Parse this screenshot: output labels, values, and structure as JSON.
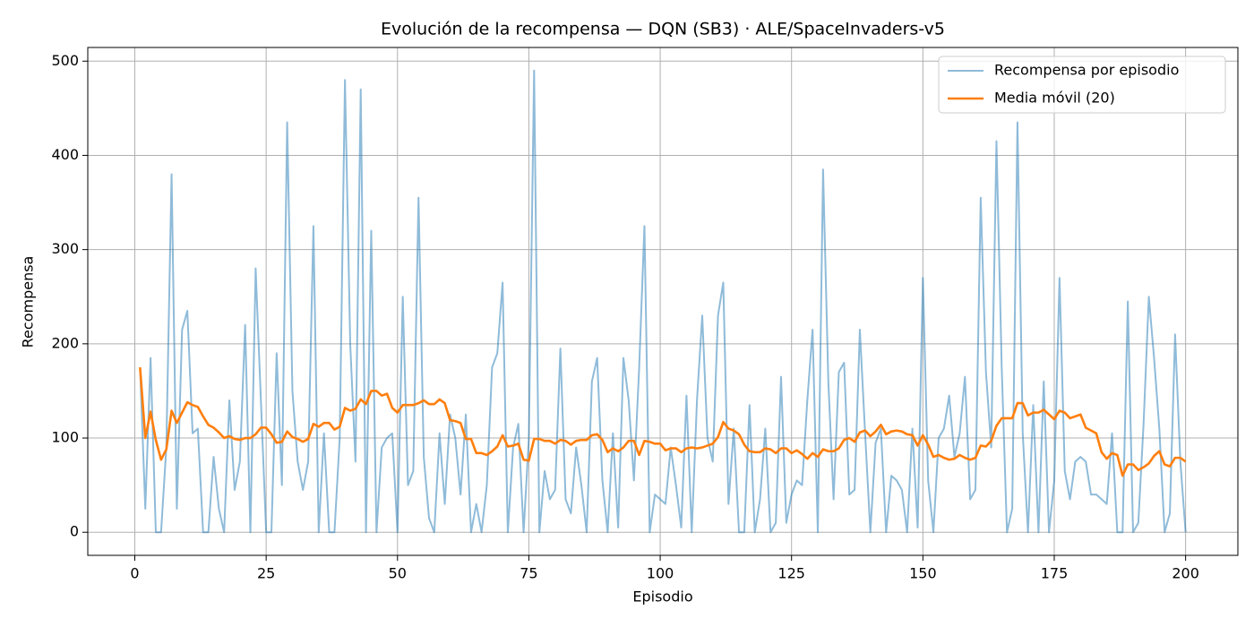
{
  "chart_data": {
    "type": "line",
    "title": "Evolución de la recompensa — DQN (SB3) · ALE/SpaceInvaders-v5",
    "x_label": "Episodio",
    "y_label": "Recompensa",
    "x": [
      1,
      2,
      3,
      4,
      5,
      6,
      7,
      8,
      9,
      10,
      11,
      12,
      13,
      14,
      15,
      16,
      17,
      18,
      19,
      20,
      21,
      22,
      23,
      24,
      25,
      26,
      27,
      28,
      29,
      30,
      31,
      32,
      33,
      34,
      35,
      36,
      37,
      38,
      39,
      40,
      41,
      42,
      43,
      44,
      45,
      46,
      47,
      48,
      49,
      50,
      51,
      52,
      53,
      54,
      55,
      56,
      57,
      58,
      59,
      60,
      61,
      62,
      63,
      64,
      65,
      66,
      67,
      68,
      69,
      70,
      71,
      72,
      73,
      74,
      75,
      76,
      77,
      78,
      79,
      80,
      81,
      82,
      83,
      84,
      85,
      86,
      87,
      88,
      89,
      90,
      91,
      92,
      93,
      94,
      95,
      96,
      97,
      98,
      99,
      100,
      101,
      102,
      103,
      104,
      105,
      106,
      107,
      108,
      109,
      110,
      111,
      112,
      113,
      114,
      115,
      116,
      117,
      118,
      119,
      120,
      121,
      122,
      123,
      124,
      125,
      126,
      127,
      128,
      129,
      130,
      131,
      132,
      133,
      134,
      135,
      136,
      137,
      138,
      139,
      140,
      141,
      142,
      143,
      144,
      145,
      146,
      147,
      148,
      149,
      150,
      151,
      152,
      153,
      154,
      155,
      156,
      157,
      158,
      159,
      160,
      161,
      162,
      163,
      164,
      165,
      166,
      167,
      168,
      169,
      170,
      171,
      172,
      173,
      174,
      175,
      176,
      177,
      178,
      179,
      180,
      181,
      182,
      183,
      184,
      185,
      186,
      187,
      188,
      189,
      190,
      191,
      192,
      193,
      194,
      195,
      196,
      197,
      198,
      199,
      200
    ],
    "series": [
      {
        "name": "Recompensa por episodio",
        "color": "#1f77b4",
        "opacity": 0.5,
        "values": [
          175,
          25,
          185,
          0,
          0,
          90,
          380,
          25,
          215,
          235,
          105,
          110,
          0,
          0,
          80,
          25,
          0,
          140,
          45,
          75,
          220,
          0,
          280,
          140,
          0,
          0,
          190,
          50,
          435,
          150,
          75,
          45,
          75,
          325,
          0,
          105,
          0,
          0,
          100,
          480,
          200,
          75,
          470,
          0,
          320,
          0,
          90,
          100,
          105,
          0,
          250,
          50,
          65,
          355,
          80,
          15,
          0,
          105,
          30,
          125,
          100,
          40,
          125,
          0,
          30,
          0,
          50,
          175,
          190,
          265,
          0,
          90,
          115,
          0,
          100,
          490,
          0,
          65,
          35,
          45,
          195,
          35,
          20,
          90,
          50,
          0,
          160,
          185,
          55,
          0,
          105,
          5,
          185,
          140,
          55,
          175,
          325,
          0,
          40,
          35,
          30,
          90,
          50,
          5,
          145,
          0,
          140,
          230,
          100,
          75,
          230,
          265,
          30,
          110,
          0,
          0,
          135,
          0,
          35,
          110,
          0,
          10,
          165,
          10,
          40,
          55,
          50,
          140,
          215,
          0,
          385,
          160,
          35,
          170,
          180,
          40,
          45,
          215,
          105,
          0,
          95,
          110,
          0,
          60,
          55,
          45,
          0,
          110,
          5,
          270,
          55,
          0,
          100,
          110,
          145,
          80,
          105,
          165,
          35,
          45,
          355,
          170,
          90,
          415,
          175,
          0,
          25,
          435,
          105,
          0,
          135,
          0,
          160,
          0,
          55,
          270,
          65,
          35,
          75,
          80,
          75,
          40,
          40,
          35,
          30,
          105,
          0,
          0,
          245,
          0,
          10,
          115,
          250,
          185,
          110,
          0,
          20,
          210,
          75,
          0
        ]
      },
      {
        "name": "Media móvil (20)",
        "color": "#ff7f0e",
        "opacity": 1,
        "values": [
          175,
          100,
          128,
          98,
          77,
          88,
          129,
          116,
          127,
          138,
          135,
          133,
          123,
          114,
          111,
          106,
          100,
          102,
          99,
          98,
          100,
          100,
          104,
          111,
          111,
          104,
          95,
          96,
          107,
          101,
          99,
          96,
          99,
          115,
          112,
          116,
          116,
          109,
          112,
          132,
          129,
          131,
          141,
          136,
          150,
          150,
          145,
          147,
          132,
          127,
          135,
          135,
          135,
          137,
          140,
          136,
          136,
          141,
          137,
          119,
          118,
          116,
          99,
          99,
          84,
          84,
          82,
          86,
          91,
          103,
          91,
          92,
          94,
          77,
          76,
          99,
          99,
          97,
          97,
          94,
          98,
          97,
          93,
          97,
          98,
          98,
          103,
          104,
          98,
          85,
          89,
          86,
          90,
          97,
          97,
          82,
          97,
          96,
          94,
          94,
          87,
          89,
          89,
          85,
          89,
          90,
          89,
          90,
          92,
          94,
          101,
          117,
          110,
          108,
          104,
          93,
          86,
          85,
          85,
          89,
          88,
          84,
          89,
          89,
          84,
          87,
          83,
          78,
          84,
          80,
          88,
          86,
          86,
          89,
          98,
          100,
          96,
          106,
          108,
          102,
          107,
          114,
          104,
          107,
          108,
          107,
          104,
          103,
          92,
          103,
          93,
          80,
          82,
          79,
          77,
          78,
          82,
          79,
          77,
          79,
          92,
          91,
          97,
          113,
          121,
          121,
          121,
          137,
          137,
          124,
          127,
          127,
          130,
          125,
          120,
          129,
          127,
          121,
          123,
          125,
          111,
          108,
          105,
          85,
          78,
          84,
          82,
          60,
          72,
          72,
          66,
          69,
          73,
          81,
          86,
          72,
          70,
          79,
          79,
          75
        ]
      }
    ],
    "xlim": [
      -8.95,
      209.95
    ],
    "ylim": [
      -24.5,
      514.5
    ],
    "xticks": [
      0,
      25,
      50,
      75,
      100,
      125,
      150,
      175,
      200
    ],
    "yticks": [
      0,
      100,
      200,
      300,
      400,
      500
    ],
    "grid": true,
    "legend": "upper right"
  }
}
